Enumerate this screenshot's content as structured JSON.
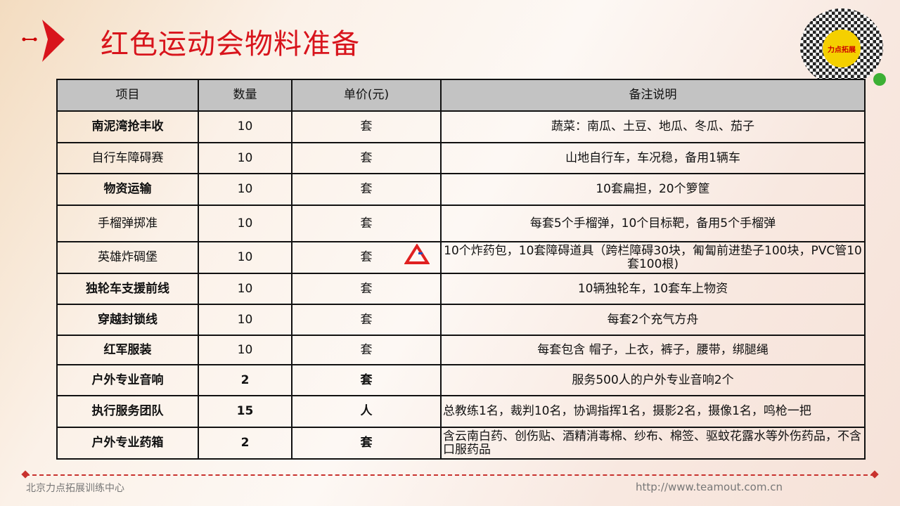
{
  "title": "红色运动会物料准备",
  "logo_text": "力点拓展",
  "table": {
    "headers": [
      "项目",
      "数量",
      "单价(元)",
      "备注说明"
    ],
    "rows": [
      {
        "item": "南泥湾抢丰收",
        "qty": "10",
        "unit": "套",
        "note": "蔬菜：南瓜、土豆、地瓜、冬瓜、茄子"
      },
      {
        "item": "自行车障碍赛",
        "qty": "10",
        "unit": "套",
        "note": "山地自行车，车况稳，备用1辆车"
      },
      {
        "item": "物资运输",
        "qty": "10",
        "unit": "套",
        "note": "10套扁担，20个箩筐"
      },
      {
        "item": "手榴弹掷准",
        "qty": "10",
        "unit": "套",
        "note": "每套5个手榴弹，10个目标靶，备用5个手榴弹"
      },
      {
        "item": "英雄炸碉堡",
        "qty": "10",
        "unit": "套",
        "note": "10个炸药包，10套障碍道具（跨栏障碍30块，匍匐前进垫子100块，PVC管10套100根)"
      },
      {
        "item": "独轮车支援前线",
        "qty": "10",
        "unit": "套",
        "note": "10辆独轮车，10套车上物资"
      },
      {
        "item": "穿越封锁线",
        "qty": "10",
        "unit": "套",
        "note": "每套2个充气方舟"
      },
      {
        "item": "红军服装",
        "qty": "10",
        "unit": "套",
        "note": "每套包含 帽子，上衣，裤子，腰带，绑腿绳"
      },
      {
        "item": "户外专业音响",
        "qty": "2",
        "unit": "套",
        "note": "服务500人的户外专业音响2个"
      },
      {
        "item": "执行服务团队",
        "qty": "15",
        "unit": "人",
        "note": "总教练1名，裁判10名，协调指挥1名，摄影2名，摄像1名，鸣枪一把"
      },
      {
        "item": "户外专业药箱",
        "qty": "2",
        "unit": "套",
        "note": "含云南白药、创伤贴、酒精消毒棉、纱布、棉签、驱蚊花露水等外伤药品，不含口服药品"
      }
    ]
  },
  "footer": {
    "org": "北京力点拓展训练中心",
    "url": "http://www.teamout.com.cn"
  },
  "colors": {
    "accent": "#d8141c",
    "header_bg": "#c3c3c3"
  }
}
